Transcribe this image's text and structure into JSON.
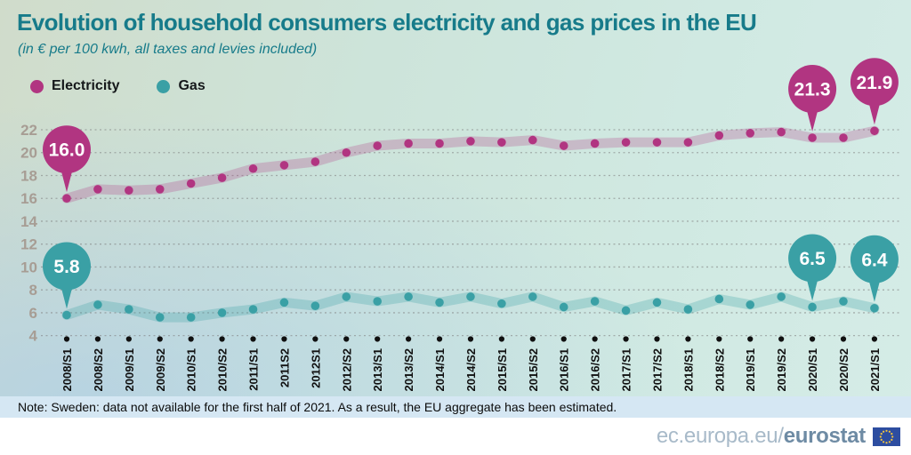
{
  "header": {
    "title": "Evolution of household consumers electricity and gas prices in the EU",
    "subtitle": "(in € per 100 kwh, all taxes and levies included)"
  },
  "legend": {
    "items": [
      {
        "label": "Electricity",
        "color": "#b13581"
      },
      {
        "label": "Gas",
        "color": "#3aa0a5"
      }
    ]
  },
  "chart_data": {
    "type": "line",
    "title": "Evolution of household consumers electricity and gas prices in the EU",
    "subtitle": "(in € per 100 kwh, all taxes and levies included)",
    "xlabel": "",
    "ylabel": "€ per 100 kwh",
    "ylim": [
      4,
      22
    ],
    "yticks": [
      4,
      6,
      8,
      10,
      12,
      14,
      16,
      18,
      20,
      22
    ],
    "grid": "dashed-horizontal",
    "legend_position": "top-left",
    "categories": [
      "2008/S1",
      "2008/S2",
      "2009/S1",
      "2009/S2",
      "2010/S1",
      "2010/S2",
      "2011/S1",
      "2011S2",
      "2012S1",
      "2012/S2",
      "2013/S1",
      "2013/S2",
      "2014/S1",
      "2014/S2",
      "2015/S1",
      "2015/S2",
      "2016/S1",
      "2016/S2",
      "2017/S1",
      "2017/S2",
      "2018/S1",
      "2018/S2",
      "2019/S1",
      "2019/S2",
      "2020/S1",
      "2020/S2",
      "2021/S1"
    ],
    "series": [
      {
        "name": "Electricity",
        "color": "#b13581",
        "band_color": "rgba(177,53,129,0.25)",
        "values": [
          16.0,
          16.8,
          16.7,
          16.8,
          17.3,
          17.8,
          18.6,
          18.9,
          19.2,
          20.0,
          20.6,
          20.8,
          20.8,
          21.0,
          20.9,
          21.1,
          20.6,
          20.8,
          20.9,
          20.9,
          20.9,
          21.5,
          21.7,
          21.8,
          21.3,
          21.3,
          21.9
        ]
      },
      {
        "name": "Gas",
        "color": "#3aa0a5",
        "band_color": "rgba(58,160,165,0.28)",
        "values": [
          5.8,
          6.7,
          6.3,
          5.6,
          5.6,
          6.0,
          6.3,
          6.9,
          6.6,
          7.4,
          7.0,
          7.4,
          6.9,
          7.4,
          6.8,
          7.4,
          6.5,
          7.0,
          6.2,
          6.9,
          6.3,
          7.2,
          6.7,
          7.4,
          6.5,
          7.0,
          6.4
        ]
      }
    ],
    "callouts": [
      {
        "series": "Electricity",
        "category": "2008/S1",
        "label": "16.0"
      },
      {
        "series": "Electricity",
        "category": "2020/S1",
        "label": "21.3"
      },
      {
        "series": "Electricity",
        "category": "2021/S1",
        "label": "21.9"
      },
      {
        "series": "Gas",
        "category": "2008/S1",
        "label": "5.8"
      },
      {
        "series": "Gas",
        "category": "2020/S1",
        "label": "6.5"
      },
      {
        "series": "Gas",
        "category": "2021/S1",
        "label": "6.4"
      }
    ]
  },
  "note": {
    "text": "Note: Sweden: data not available for the first half of 2021. As a result, the EU aggregate has been estimated."
  },
  "footer": {
    "url_prefix": "ec.europa.eu/",
    "url_bold": "eurostat"
  },
  "colors": {
    "title": "#177b8a",
    "axis_labels": "#a79d94",
    "x_labels": "#111111",
    "grid": "#7b7b7b",
    "note_bg": "#d5e7f3",
    "footer_light": "#a8bac9",
    "footer_bold": "#6e8ba4",
    "eu_blue": "#2d4da0",
    "star_yellow": "#f5c63c"
  }
}
